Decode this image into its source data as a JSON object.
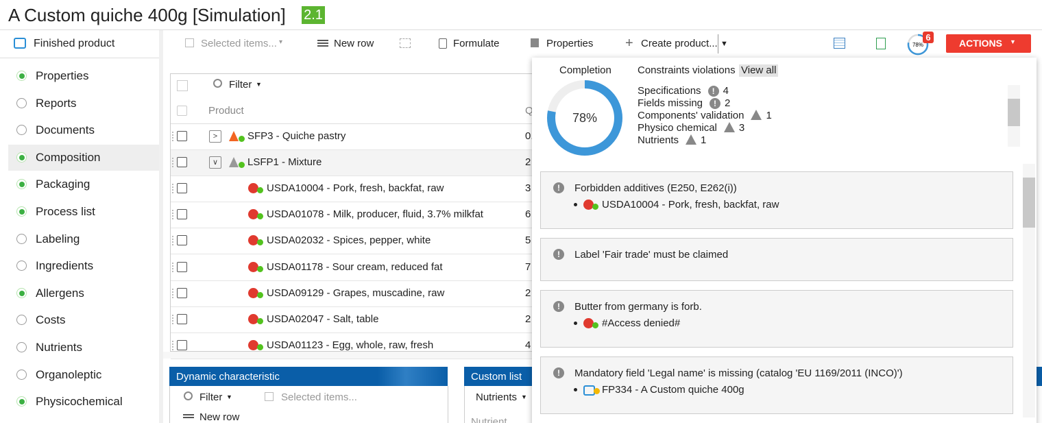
{
  "header": {
    "title": "A Custom quiche 400g [Simulation]",
    "version": "2.1"
  },
  "sidebar": {
    "heading": "Finished product",
    "items": [
      {
        "label": "Properties",
        "done": true
      },
      {
        "label": "Reports",
        "done": false
      },
      {
        "label": "Documents",
        "done": false
      },
      {
        "label": "Composition",
        "done": true,
        "selected": true
      },
      {
        "label": "Packaging",
        "done": true
      },
      {
        "label": "Process list",
        "done": true
      },
      {
        "label": "Labeling",
        "done": false
      },
      {
        "label": "Ingredients",
        "done": false
      },
      {
        "label": "Allergens",
        "done": true
      },
      {
        "label": "Costs",
        "done": false
      },
      {
        "label": "Nutrients",
        "done": false
      },
      {
        "label": "Organoleptic",
        "done": false
      },
      {
        "label": "Physicochemical",
        "done": true
      }
    ]
  },
  "toolbar": {
    "selected_items": "Selected items...",
    "new_row": "New row",
    "formulate": "Formulate",
    "properties": "Properties",
    "create_product": "Create product...",
    "notifications": 6,
    "actions": "ACTIONS"
  },
  "grid": {
    "filter": "Filter",
    "columns": [
      "Product",
      "Q"
    ],
    "rows": [
      {
        "product": "SFP3 - Quiche pastry",
        "qty": "0.",
        "level": 0,
        "expanded": false,
        "icon_color": "#f26522"
      },
      {
        "product": "LSFP1 - Mixture",
        "qty": "2",
        "level": 0,
        "expanded": true,
        "icon_color": "#999999"
      },
      {
        "product": "USDA10004 - Pork, fresh, backfat, raw",
        "qty": "3",
        "level": 1
      },
      {
        "product": "USDA01078 - Milk, producer, fluid, 3.7% milkfat",
        "qty": "6",
        "level": 1
      },
      {
        "product": "USDA02032 - Spices, pepper, white",
        "qty": "5",
        "level": 1
      },
      {
        "product": "USDA01178 - Sour cream, reduced fat",
        "qty": "7",
        "level": 1
      },
      {
        "product": "USDA09129 - Grapes, muscadine, raw",
        "qty": "2",
        "level": 1
      },
      {
        "product": "USDA02047 - Salt, table",
        "qty": "2",
        "level": 1
      },
      {
        "product": "USDA01123 - Egg, whole, raw, fresh",
        "qty": "4",
        "level": 1
      }
    ]
  },
  "panels": {
    "dynamic": {
      "title": "Dynamic characteristic",
      "filter": "Filter",
      "selected_items": "Selected items...",
      "new_row": "New row"
    },
    "custom": {
      "title": "Custom list",
      "list": "Nutrients",
      "column": "Nutrient"
    }
  },
  "completion": {
    "label": "Completion",
    "value": 78,
    "value_label": "78%"
  },
  "constraints": {
    "title": "Constraints violations",
    "view_all": "View all",
    "items": [
      {
        "name": "Specifications",
        "count": 4,
        "severity": "error"
      },
      {
        "name": "Fields missing",
        "count": 2,
        "severity": "error"
      },
      {
        "name": "Components' validation",
        "count": 1,
        "severity": "warning"
      },
      {
        "name": "Physico chemical",
        "count": 3,
        "severity": "warning"
      },
      {
        "name": "Nutrients",
        "count": 1,
        "severity": "warning"
      }
    ]
  },
  "messages": [
    {
      "text": "Forbidden additives (E250, E262(i))",
      "items": [
        {
          "label": "USDA10004 - Pork, fresh, backfat, raw",
          "icon": "raw"
        }
      ]
    },
    {
      "text": "Label 'Fair trade' must be claimed",
      "items": []
    },
    {
      "text": "Butter from germany is forb.",
      "items": [
        {
          "label": "#Access denied#",
          "icon": "raw"
        }
      ]
    },
    {
      "text": "Mandatory field 'Legal name' is missing (catalog 'EU 1169/2011 (INCO)')",
      "items": [
        {
          "label": "FP334 - A Custom quiche 400g",
          "icon": "product"
        }
      ]
    }
  ]
}
